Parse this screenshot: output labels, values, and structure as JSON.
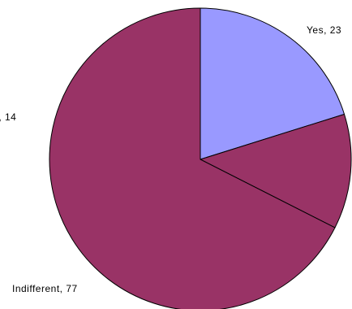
{
  "chart_data": {
    "type": "pie",
    "slices": [
      {
        "label": "Yes",
        "value": 23,
        "color": "#9999ff"
      },
      {
        "label": "No",
        "value": 14,
        "color": "#993366"
      },
      {
        "label": "Indifferent",
        "value": 77,
        "color": "#993366"
      }
    ],
    "start_angle_deg": 0,
    "direction": "clockwise",
    "legend": "none"
  }
}
